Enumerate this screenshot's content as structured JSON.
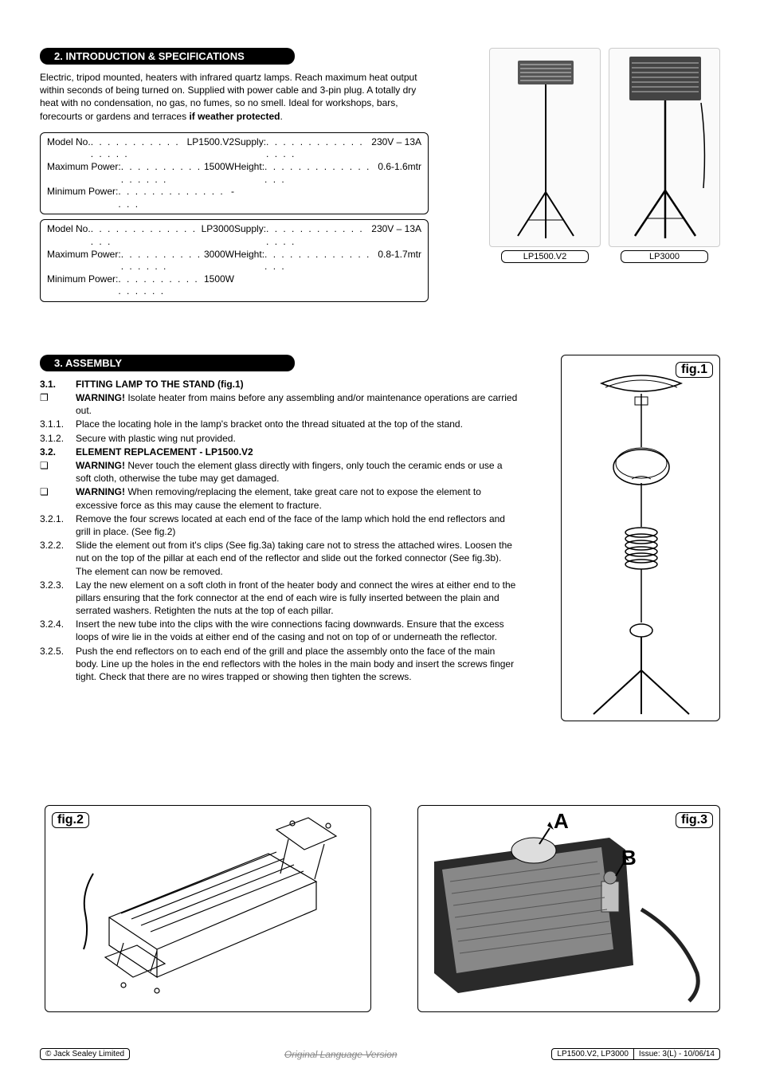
{
  "sections": {
    "intro_header": "2.   INTRODUCTION & SPECIFICATIONS",
    "assembly_header": "3.   ASSEMBLY"
  },
  "intro": {
    "p1": "Electric, tripod mounted, heaters with infrared quartz lamps. Reach maximum heat output within seconds of being turned on. Supplied with power cable and 3-pin plug. A totally dry heat with no condensation, no gas, no fumes, so no smell. Ideal for workshops, bars, forecourts or gardens and terraces ",
    "p1_bold": "if weather protected",
    "p1_end": "."
  },
  "specs": [
    {
      "left": [
        {
          "label": "Model No.",
          "value": "LP1500.V2"
        },
        {
          "label": "Maximum Power:",
          "value": "1500W"
        },
        {
          "label": "Minimum Power:",
          "value": "-"
        }
      ],
      "right": [
        {
          "label": "Supply:",
          "value": "230V – 13A"
        },
        {
          "label": "Height:",
          "value": "0.6-1.6mtr"
        }
      ]
    },
    {
      "left": [
        {
          "label": "Model No.",
          "value": "LP3000"
        },
        {
          "label": "Maximum Power:",
          "value": "3000W"
        },
        {
          "label": "Minimum Power:",
          "value": "1500W"
        }
      ],
      "right": [
        {
          "label": "Supply:",
          "value": "230V – 13A"
        },
        {
          "label": "Height:",
          "value": "0.8-1.7mtr"
        }
      ]
    }
  ],
  "product_images": [
    {
      "caption": "LP1500.V2"
    },
    {
      "caption": "LP3000"
    }
  ],
  "assembly": [
    {
      "num": "3.1.",
      "text": "FITTING LAMP TO THE STAND (fig.1)",
      "bold": true
    },
    {
      "num": "❐",
      "text_pre": "WARNING! ",
      "text": "Isolate heater from mains before any assembling and/or maintenance operations are carried out.",
      "warning": true
    },
    {
      "num": "3.1.1.",
      "text": "Place the locating hole in the lamp's bracket onto the thread situated at the top of the stand."
    },
    {
      "num": "3.1.2.",
      "text": "Secure with plastic wing nut provided."
    },
    {
      "num": "3.2.",
      "text": "ELEMENT REPLACEMENT - LP1500.V2",
      "bold": true
    },
    {
      "num": "❏",
      "text_pre": "WARNING! ",
      "text": "Never touch the element glass directly with fingers, only touch the ceramic ends or use a soft cloth, otherwise the tube may get damaged.",
      "warning": true
    },
    {
      "num": "❏",
      "text_pre": "WARNING! ",
      "text": "When removing/replacing the element, take great care not to expose the element to excessive force as this may cause the element to fracture.",
      "warning": true
    },
    {
      "num": "3.2.1.",
      "text": "Remove the four screws located at each end of the face of the lamp which hold the end reflectors and grill in place. (See fig.2)"
    },
    {
      "num": "3.2.2.",
      "text": "Slide the element out from it's clips (See fig.3a) taking care not to stress the attached wires. Loosen the nut on the top of the pillar at each end of the reflector and slide out the forked connector (See fig.3b). The element can now be removed."
    },
    {
      "num": "3.2.3.",
      "text": "Lay the new element on a soft cloth in front of the heater body and connect the wires at either end to the pillars ensuring that the fork connector at the end of each wire is fully inserted between the plain and serrated washers. Retighten the nuts at the top of each pillar."
    },
    {
      "num": "3.2.4.",
      "text": "Insert the new tube into the clips with the wire connections facing downwards. Ensure that the excess loops of wire lie in the voids at either end of the casing and not on top of or underneath the reflector."
    },
    {
      "num": "3.2.5.",
      "text": "Push the end reflectors on to each end of the grill and place the assembly onto the face of the main body. Line up the holes in the end reflectors with the holes in the main body and insert the screws finger tight. Check that there are no wires trapped or showing then tighten the screws."
    }
  ],
  "figures": {
    "fig1": "fig.1",
    "fig2": "fig.2",
    "fig3": "fig.3",
    "fig3_a": "A",
    "fig3_b": "B"
  },
  "footer": {
    "left": "© Jack Sealey Limited",
    "center": "Original Language Version",
    "right_models": "LP1500.V2, LP3000",
    "right_issue": "Issue: 3(L) - 10/06/14"
  },
  "colors": {
    "header_bg": "#000000",
    "header_fg": "#ffffff",
    "text": "#000000",
    "border": "#000000"
  }
}
